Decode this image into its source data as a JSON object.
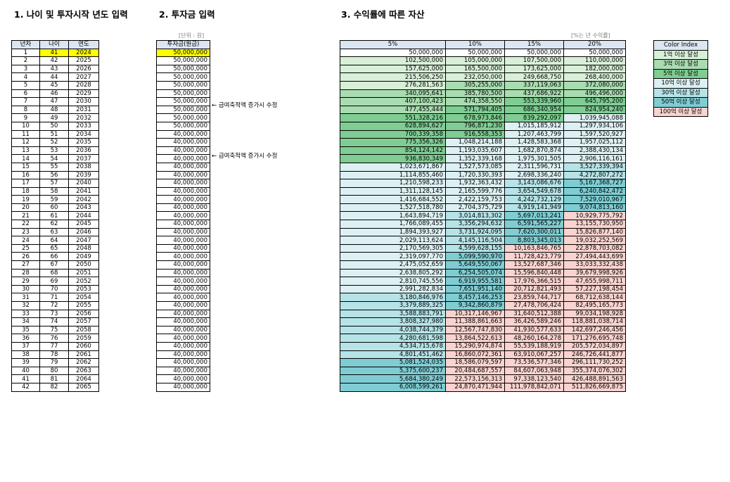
{
  "sections": {
    "s1_title": "1. 나이 및 투자시작 년도 입력",
    "s2_title": "2. 투자금 입력",
    "s3_title": "3. 수익률에 따른 자산"
  },
  "notes": {
    "unit": "[단위 : 원]",
    "rate": "[%는 년 수익률]",
    "change_note_1": "← 급여축적액 증가시 수정",
    "change_note_2": "← 급여축적액 증가시 수정"
  },
  "table1": {
    "headers": [
      "년차",
      "나이",
      "연도"
    ],
    "rows": [
      [
        "1",
        "41",
        "2024"
      ],
      [
        "2",
        "42",
        "2025"
      ],
      [
        "3",
        "43",
        "2026"
      ],
      [
        "4",
        "44",
        "2027"
      ],
      [
        "5",
        "45",
        "2028"
      ],
      [
        "6",
        "46",
        "2029"
      ],
      [
        "7",
        "47",
        "2030"
      ],
      [
        "8",
        "48",
        "2031"
      ],
      [
        "9",
        "49",
        "2032"
      ],
      [
        "10",
        "50",
        "2033"
      ],
      [
        "11",
        "51",
        "2034"
      ],
      [
        "12",
        "52",
        "2035"
      ],
      [
        "13",
        "53",
        "2036"
      ],
      [
        "14",
        "54",
        "2037"
      ],
      [
        "15",
        "55",
        "2038"
      ],
      [
        "16",
        "56",
        "2039"
      ],
      [
        "17",
        "57",
        "2040"
      ],
      [
        "18",
        "58",
        "2041"
      ],
      [
        "19",
        "59",
        "2042"
      ],
      [
        "20",
        "60",
        "2043"
      ],
      [
        "21",
        "61",
        "2044"
      ],
      [
        "22",
        "62",
        "2045"
      ],
      [
        "23",
        "63",
        "2046"
      ],
      [
        "24",
        "64",
        "2047"
      ],
      [
        "25",
        "65",
        "2048"
      ],
      [
        "26",
        "66",
        "2049"
      ],
      [
        "27",
        "67",
        "2050"
      ],
      [
        "28",
        "68",
        "2051"
      ],
      [
        "29",
        "69",
        "2052"
      ],
      [
        "30",
        "70",
        "2053"
      ],
      [
        "31",
        "71",
        "2054"
      ],
      [
        "32",
        "72",
        "2055"
      ],
      [
        "33",
        "73",
        "2056"
      ],
      [
        "34",
        "74",
        "2057"
      ],
      [
        "35",
        "75",
        "2058"
      ],
      [
        "36",
        "76",
        "2059"
      ],
      [
        "37",
        "77",
        "2060"
      ],
      [
        "38",
        "78",
        "2061"
      ],
      [
        "39",
        "79",
        "2062"
      ],
      [
        "40",
        "80",
        "2063"
      ],
      [
        "41",
        "81",
        "2064"
      ],
      [
        "42",
        "82",
        "2065"
      ]
    ]
  },
  "table2": {
    "header": "투자금(원금)",
    "values": [
      "50,000,000",
      "50,000,000",
      "50,000,000",
      "50,000,000",
      "50,000,000",
      "50,000,000",
      "50,000,000",
      "50,000,000",
      "50,000,000",
      "50,000,000",
      "40,000,000",
      "40,000,000",
      "40,000,000",
      "40,000,000",
      "40,000,000",
      "40,000,000",
      "40,000,000",
      "40,000,000",
      "40,000,000",
      "40,000,000",
      "40,000,000",
      "40,000,000",
      "40,000,000",
      "40,000,000",
      "40,000,000",
      "40,000,000",
      "40,000,000",
      "40,000,000",
      "40,000,000",
      "40,000,000",
      "40,000,000",
      "40,000,000",
      "40,000,000",
      "40,000,000",
      "40,000,000",
      "40,000,000",
      "40,000,000",
      "40,000,000",
      "40,000,000",
      "40,000,000",
      "40,000,000",
      "40,000,000"
    ]
  },
  "table3": {
    "headers": [
      "5%",
      "10%",
      "15%",
      "20%"
    ],
    "rows": [
      [
        "50,000,000",
        "50,000,000",
        "50,000,000",
        "50,000,000"
      ],
      [
        "102,500,000",
        "105,000,000",
        "107,500,000",
        "110,000,000"
      ],
      [
        "157,625,000",
        "165,500,000",
        "173,625,000",
        "182,000,000"
      ],
      [
        "215,506,250",
        "232,050,000",
        "249,668,750",
        "268,400,000"
      ],
      [
        "276,281,563",
        "305,255,000",
        "337,119,063",
        "372,080,000"
      ],
      [
        "340,095,641",
        "385,780,500",
        "437,686,922",
        "496,496,000"
      ],
      [
        "407,100,423",
        "474,358,550",
        "553,339,960",
        "645,795,200"
      ],
      [
        "477,455,444",
        "571,794,405",
        "686,340,954",
        "824,954,240"
      ],
      [
        "551,328,216",
        "678,973,846",
        "839,292,097",
        "1,039,945,088"
      ],
      [
        "628,894,627",
        "796,871,230",
        "1,015,185,912",
        "1,297,934,106"
      ],
      [
        "700,339,358",
        "916,558,353",
        "1,207,463,799",
        "1,597,520,927"
      ],
      [
        "775,356,326",
        "1,048,214,188",
        "1,428,583,368",
        "1,957,025,112"
      ],
      [
        "854,124,142",
        "1,193,035,607",
        "1,682,870,874",
        "2,388,430,134"
      ],
      [
        "936,830,349",
        "1,352,339,168",
        "1,975,301,505",
        "2,906,116,161"
      ],
      [
        "1,023,671,867",
        "1,527,573,085",
        "2,311,596,731",
        "3,527,339,394"
      ],
      [
        "1,114,855,460",
        "1,720,330,393",
        "2,698,336,240",
        "4,272,807,272"
      ],
      [
        "1,210,598,233",
        "1,932,363,432",
        "3,143,086,676",
        "5,167,368,727"
      ],
      [
        "1,311,128,145",
        "2,165,599,776",
        "3,654,549,678",
        "6,240,842,472"
      ],
      [
        "1,416,684,552",
        "2,422,159,753",
        "4,242,732,129",
        "7,529,010,967"
      ],
      [
        "1,527,518,780",
        "2,704,375,729",
        "4,919,141,949",
        "9,074,813,160"
      ],
      [
        "1,643,894,719",
        "3,014,813,302",
        "5,697,013,241",
        "10,929,775,792"
      ],
      [
        "1,766,089,455",
        "3,356,294,632",
        "6,591,565,227",
        "13,155,730,950"
      ],
      [
        "1,894,393,927",
        "3,731,924,095",
        "7,620,300,011",
        "15,826,877,140"
      ],
      [
        "2,029,113,624",
        "4,145,116,504",
        "8,803,345,013",
        "19,032,252,569"
      ],
      [
        "2,170,569,305",
        "4,599,628,155",
        "10,163,846,765",
        "22,878,703,082"
      ],
      [
        "2,319,097,770",
        "5,099,590,970",
        "11,728,423,779",
        "27,494,443,699"
      ],
      [
        "2,475,052,659",
        "5,649,550,067",
        "13,527,687,346",
        "33,033,332,438"
      ],
      [
        "2,638,805,292",
        "6,254,505,074",
        "15,596,840,448",
        "39,679,998,926"
      ],
      [
        "2,810,745,556",
        "6,919,955,581",
        "17,976,366,515",
        "47,655,998,711"
      ],
      [
        "2,991,282,834",
        "7,651,951,140",
        "20,712,821,493",
        "57,227,198,454"
      ],
      [
        "3,180,846,976",
        "8,457,146,253",
        "23,859,744,717",
        "68,712,638,144"
      ],
      [
        "3,379,889,325",
        "9,342,860,879",
        "27,478,706,424",
        "82,495,165,773"
      ],
      [
        "3,588,883,791",
        "10,317,146,967",
        "31,640,512,388",
        "99,034,198,928"
      ],
      [
        "3,808,327,980",
        "11,388,861,663",
        "36,426,589,246",
        "118,881,038,714"
      ],
      [
        "4,038,744,379",
        "12,567,747,830",
        "41,930,577,633",
        "142,697,246,456"
      ],
      [
        "4,280,681,598",
        "13,864,522,613",
        "48,260,164,278",
        "171,276,695,748"
      ],
      [
        "4,534,715,678",
        "15,290,974,874",
        "55,539,188,919",
        "205,572,034,897"
      ],
      [
        "4,801,451,462",
        "16,860,072,361",
        "63,910,067,257",
        "246,726,441,877"
      ],
      [
        "5,081,524,035",
        "18,586,079,597",
        "73,536,577,346",
        "296,111,730,252"
      ],
      [
        "5,375,600,237",
        "20,484,687,557",
        "84,607,063,948",
        "355,374,076,302"
      ],
      [
        "5,684,380,249",
        "22,573,156,313",
        "97,338,123,540",
        "426,488,891,563"
      ],
      [
        "6,008,599,261",
        "24,870,471,944",
        "111,978,842,071",
        "511,826,669,875"
      ]
    ]
  },
  "color_index": {
    "header": "Color Index",
    "items": [
      {
        "label": "1억 이상 달성",
        "color": "#d8efd8"
      },
      {
        "label": "3억 이상 달성",
        "color": "#a9dcb0"
      },
      {
        "label": "5억 이상 달성",
        "color": "#7fcd93"
      },
      {
        "label": "10억 이상 달성",
        "color": "#ddf0f3"
      },
      {
        "label": "30억 이상 달성",
        "color": "#b6e3e7"
      },
      {
        "label": "50억 이상 달성",
        "color": "#7fcdd3"
      },
      {
        "label": "100억 이상 달성",
        "color": "#f9d3cf"
      }
    ]
  }
}
